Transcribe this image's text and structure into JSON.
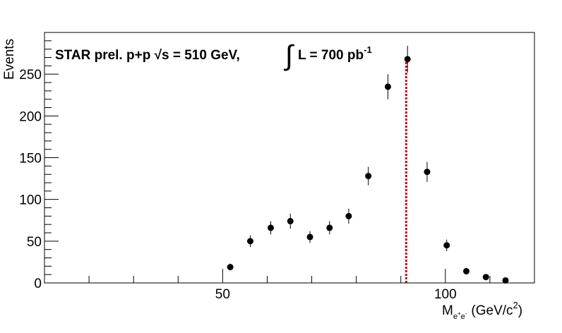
{
  "chart_data": {
    "type": "scatter",
    "title": "",
    "xlabel": "(GeV/c",
    "xlabel_symbol": "M",
    "xlabel_sub": "e+e-",
    "xlabel_sup": "2",
    "xlabel_close": ")",
    "ylabel": "Events",
    "xlim": [
      10,
      120
    ],
    "ylim": [
      0,
      300
    ],
    "x_ticks": [
      50,
      100
    ],
    "y_ticks": [
      0,
      50,
      100,
      150,
      200,
      250
    ],
    "grid": false,
    "annotation": {
      "main": "STAR prel. p+p  √s = 510 GeV,",
      "integral_symbol": "∫",
      "lumi": "L = 700 pb",
      "lumi_sup": "-1"
    },
    "reference_line": {
      "x": 91.2,
      "color": "#d40000",
      "style": "dotted"
    },
    "series": [
      {
        "marker_color": "#000000",
        "points": [
          {
            "x": 51.7,
            "y": 19,
            "err": 4
          },
          {
            "x": 56.2,
            "y": 50,
            "err": 7
          },
          {
            "x": 60.8,
            "y": 66,
            "err": 8
          },
          {
            "x": 65.2,
            "y": 74,
            "err": 9
          },
          {
            "x": 69.6,
            "y": 55,
            "err": 7
          },
          {
            "x": 74.0,
            "y": 66,
            "err": 8
          },
          {
            "x": 78.3,
            "y": 80,
            "err": 9
          },
          {
            "x": 82.7,
            "y": 128,
            "err": 11
          },
          {
            "x": 87.1,
            "y": 235,
            "err": 15
          },
          {
            "x": 91.5,
            "y": 268,
            "err": 16
          },
          {
            "x": 95.9,
            "y": 133,
            "err": 12
          },
          {
            "x": 100.3,
            "y": 45,
            "err": 7
          },
          {
            "x": 104.7,
            "y": 14,
            "err": 4
          },
          {
            "x": 109.1,
            "y": 7,
            "err": 3
          },
          {
            "x": 113.5,
            "y": 3,
            "err": 2
          }
        ]
      }
    ]
  }
}
